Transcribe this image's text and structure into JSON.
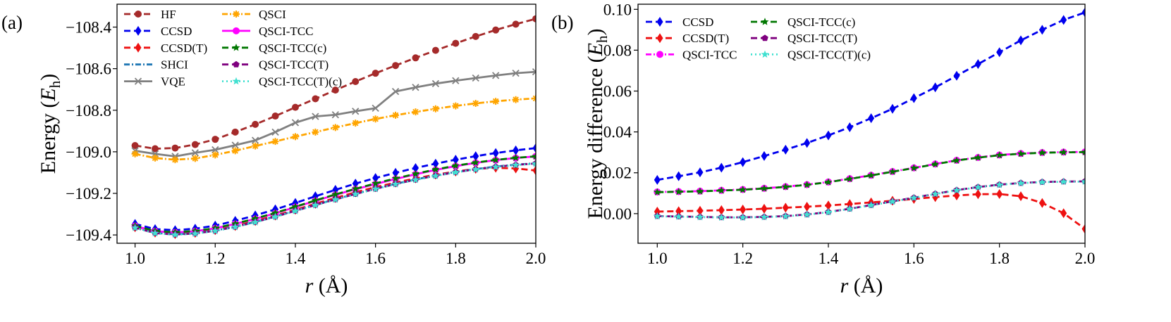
{
  "chart_data": [
    {
      "panel_label": "(a)",
      "type": "line",
      "xlabel": "r (Å)",
      "xlabel_var": "r",
      "xlabel_unit": "(Å)",
      "ylabel": "Energy (Eh)",
      "ylabel_prefix": "Energy (",
      "ylabel_var": "E",
      "ylabel_sub": "h",
      "ylabel_suffix": ")",
      "xlim": [
        0.955,
        2.0
      ],
      "ylim": [
        -109.44,
        -108.29
      ],
      "xticks": [
        1.0,
        1.2,
        1.4,
        1.6,
        1.8,
        2.0
      ],
      "xtick_labels": [
        "1.0",
        "1.2",
        "1.4",
        "1.6",
        "1.8",
        "2.0"
      ],
      "yticks": [
        -109.4,
        -109.2,
        -109.0,
        -108.8,
        -108.6,
        -108.4
      ],
      "ytick_labels": [
        "−109.4",
        "−109.2",
        "−109.0",
        "−108.8",
        "−108.6",
        "−108.4"
      ],
      "grid": false,
      "legend": {
        "placement": "top-left",
        "columns": 2
      },
      "x": [
        1.0,
        1.05,
        1.1,
        1.15,
        1.2,
        1.25,
        1.3,
        1.35,
        1.4,
        1.45,
        1.5,
        1.55,
        1.6,
        1.65,
        1.7,
        1.75,
        1.8,
        1.85,
        1.9,
        1.95,
        2.0
      ],
      "series": [
        {
          "name": "HF",
          "color": "#a52a2a",
          "marker": "circle",
          "dash": "9,5",
          "values": [
            -108.97,
            -108.985,
            -108.982,
            -108.965,
            -108.94,
            -108.905,
            -108.868,
            -108.828,
            -108.786,
            -108.745,
            -108.703,
            -108.662,
            -108.622,
            -108.585,
            -108.548,
            -108.512,
            -108.478,
            -108.445,
            -108.414,
            -108.386,
            -108.36
          ]
        },
        {
          "name": "CCSD",
          "color": "#0000ee",
          "marker": "diamond",
          "dash": "9,5",
          "values": [
            -109.347,
            -109.372,
            -109.377,
            -109.37,
            -109.355,
            -109.332,
            -109.306,
            -109.277,
            -109.246,
            -109.214,
            -109.183,
            -109.153,
            -109.126,
            -109.101,
            -109.078,
            -109.057,
            -109.038,
            -109.021,
            -109.006,
            -108.993,
            -108.982
          ]
        },
        {
          "name": "CCSD(T)",
          "color": "#ee1111",
          "marker": "diamond",
          "dash": "9,5",
          "values": [
            -109.363,
            -109.389,
            -109.396,
            -109.39,
            -109.377,
            -109.357,
            -109.333,
            -109.307,
            -109.279,
            -109.25,
            -109.222,
            -109.195,
            -109.17,
            -109.148,
            -109.128,
            -109.11,
            -109.095,
            -109.082,
            -109.077,
            -109.08,
            -109.09
          ]
        },
        {
          "name": "SHCI",
          "color": "#1f77b4",
          "marker": "none",
          "dash": "8,3,2,3",
          "values": [
            -109.364,
            -109.39,
            -109.397,
            -109.392,
            -109.379,
            -109.36,
            -109.337,
            -109.311,
            -109.283,
            -109.255,
            -109.228,
            -109.202,
            -109.177,
            -109.154,
            -109.133,
            -109.114,
            -109.097,
            -109.083,
            -109.071,
            -109.062,
            -109.055
          ]
        },
        {
          "name": "VQE",
          "color": "#808080",
          "marker": "x",
          "dash": "",
          "values": [
            -108.995,
            -109.01,
            -109.022,
            -109.005,
            -108.99,
            -108.968,
            -108.945,
            -108.905,
            -108.86,
            -108.83,
            -108.822,
            -108.805,
            -108.79,
            -108.71,
            -108.69,
            -108.672,
            -108.658,
            -108.645,
            -108.633,
            -108.622,
            -108.615
          ]
        },
        {
          "name": "QSCI",
          "color": "#ffa500",
          "marker": "plusx",
          "dash": "8,3,2,3",
          "values": [
            -109.01,
            -109.03,
            -109.038,
            -109.032,
            -109.015,
            -108.995,
            -108.972,
            -108.95,
            -108.927,
            -108.905,
            -108.883,
            -108.862,
            -108.842,
            -108.824,
            -108.808,
            -108.793,
            -108.779,
            -108.767,
            -108.757,
            -108.749,
            -108.743
          ]
        },
        {
          "name": "QSCI-TCC",
          "color": "#ff00ff",
          "marker": "circle",
          "dash": "",
          "values": [
            -109.357,
            -109.382,
            -109.388,
            -109.382,
            -109.368,
            -109.347,
            -109.323,
            -109.296,
            -109.266,
            -109.236,
            -109.207,
            -109.18,
            -109.155,
            -109.131,
            -109.108,
            -109.087,
            -109.069,
            -109.053,
            -109.04,
            -109.03,
            -109.022
          ]
        },
        {
          "name": "QSCI-TCC(c)",
          "color": "#007700",
          "marker": "star",
          "dash": "9,5",
          "values": [
            -109.356,
            -109.381,
            -109.387,
            -109.381,
            -109.367,
            -109.346,
            -109.321,
            -109.294,
            -109.264,
            -109.234,
            -109.205,
            -109.178,
            -109.152,
            -109.128,
            -109.106,
            -109.085,
            -109.067,
            -109.052,
            -109.039,
            -109.029,
            -109.022
          ]
        },
        {
          "name": "QSCI-TCC(T)",
          "color": "#7f007f",
          "marker": "pentagon",
          "dash": "9,5",
          "values": [
            -109.365,
            -109.391,
            -109.398,
            -109.393,
            -109.38,
            -109.361,
            -109.338,
            -109.312,
            -109.284,
            -109.256,
            -109.229,
            -109.203,
            -109.178,
            -109.155,
            -109.134,
            -109.115,
            -109.098,
            -109.084,
            -109.072,
            -109.063,
            -109.056
          ]
        },
        {
          "name": "QSCI-TCC(T)(c)",
          "color": "#40e0d0",
          "marker": "star",
          "dash": "2,4",
          "values": [
            -109.366,
            -109.392,
            -109.399,
            -109.394,
            -109.381,
            -109.362,
            -109.339,
            -109.313,
            -109.285,
            -109.257,
            -109.23,
            -109.204,
            -109.179,
            -109.156,
            -109.135,
            -109.116,
            -109.099,
            -109.085,
            -109.073,
            -109.064,
            -109.057
          ]
        }
      ]
    },
    {
      "panel_label": "(b)",
      "type": "line",
      "xlabel": "r (Å)",
      "xlabel_var": "r",
      "xlabel_unit": "(Å)",
      "ylabel": "Energy difference (Eh)",
      "ylabel_prefix": "Energy difference (",
      "ylabel_var": "E",
      "ylabel_sub": "h",
      "ylabel_suffix": ")",
      "xlim": [
        0.955,
        2.0
      ],
      "ylim": [
        -0.0145,
        0.1025
      ],
      "xticks": [
        1.0,
        1.2,
        1.4,
        1.6,
        1.8,
        2.0
      ],
      "xtick_labels": [
        "1.0",
        "1.2",
        "1.4",
        "1.6",
        "1.8",
        "2.0"
      ],
      "yticks": [
        0.0,
        0.02,
        0.04,
        0.06,
        0.08,
        0.1
      ],
      "ytick_labels": [
        "0.00",
        "0.02",
        "0.04",
        "0.06",
        "0.08",
        "0.10"
      ],
      "grid": false,
      "legend": {
        "placement": "top-left",
        "columns": 2
      },
      "x": [
        1.0,
        1.05,
        1.1,
        1.15,
        1.2,
        1.25,
        1.3,
        1.35,
        1.4,
        1.45,
        1.5,
        1.55,
        1.6,
        1.65,
        1.7,
        1.75,
        1.8,
        1.85,
        1.9,
        1.95,
        2.0
      ],
      "series": [
        {
          "name": "CCSD",
          "color": "#0000ee",
          "marker": "diamond",
          "dash": "9,5",
          "values": [
            0.0165,
            0.0183,
            0.0202,
            0.0225,
            0.0252,
            0.0282,
            0.0313,
            0.0346,
            0.0383,
            0.0423,
            0.0467,
            0.0513,
            0.0565,
            0.0618,
            0.0675,
            0.0732,
            0.079,
            0.0848,
            0.09,
            0.0948,
            0.0985
          ]
        },
        {
          "name": "CCSD(T)",
          "color": "#ee1111",
          "marker": "diamond",
          "dash": "9,5",
          "values": [
            0.001,
            0.0012,
            0.0014,
            0.0017,
            0.002,
            0.0024,
            0.0029,
            0.0034,
            0.004,
            0.0047,
            0.0055,
            0.0063,
            0.0072,
            0.0081,
            0.0089,
            0.0095,
            0.0096,
            0.0085,
            0.0052,
            0.0002,
            -0.0075
          ]
        },
        {
          "name": "QSCI-TCC",
          "color": "#ff00ff",
          "marker": "circle",
          "dash": "8,3,2,3",
          "values": [
            0.0106,
            0.0108,
            0.011,
            0.0114,
            0.0118,
            0.0124,
            0.0132,
            0.0142,
            0.0155,
            0.0171,
            0.0188,
            0.0206,
            0.0224,
            0.0243,
            0.0261,
            0.0275,
            0.0287,
            0.0294,
            0.0299,
            0.0301,
            0.0302
          ]
        },
        {
          "name": "QSCI-TCC(c)",
          "color": "#007700",
          "marker": "star",
          "dash": "9,5",
          "values": [
            0.0105,
            0.0107,
            0.0109,
            0.0113,
            0.0117,
            0.0123,
            0.0131,
            0.0141,
            0.0154,
            0.017,
            0.0187,
            0.0205,
            0.0223,
            0.0242,
            0.026,
            0.0274,
            0.0286,
            0.0293,
            0.0298,
            0.03,
            0.0301
          ]
        },
        {
          "name": "QSCI-TCC(T)",
          "color": "#7f007f",
          "marker": "pentagon",
          "dash": "9,5",
          "values": [
            -0.0012,
            -0.0014,
            -0.0016,
            -0.0018,
            -0.0018,
            -0.0016,
            -0.0012,
            -0.0004,
            0.0008,
            0.0024,
            0.0042,
            0.006,
            0.0078,
            0.0097,
            0.0115,
            0.013,
            0.0142,
            0.015,
            0.0155,
            0.0157,
            0.0158
          ]
        },
        {
          "name": "QSCI-TCC(T)(c)",
          "color": "#40e0d0",
          "marker": "star",
          "dash": "2,4",
          "values": [
            -0.0013,
            -0.0015,
            -0.0017,
            -0.0019,
            -0.0019,
            -0.0017,
            -0.0013,
            -0.0005,
            0.0007,
            0.0023,
            0.0041,
            0.0059,
            0.0077,
            0.0096,
            0.0114,
            0.0129,
            0.0141,
            0.0149,
            0.0154,
            0.0156,
            0.0157
          ]
        }
      ]
    }
  ]
}
